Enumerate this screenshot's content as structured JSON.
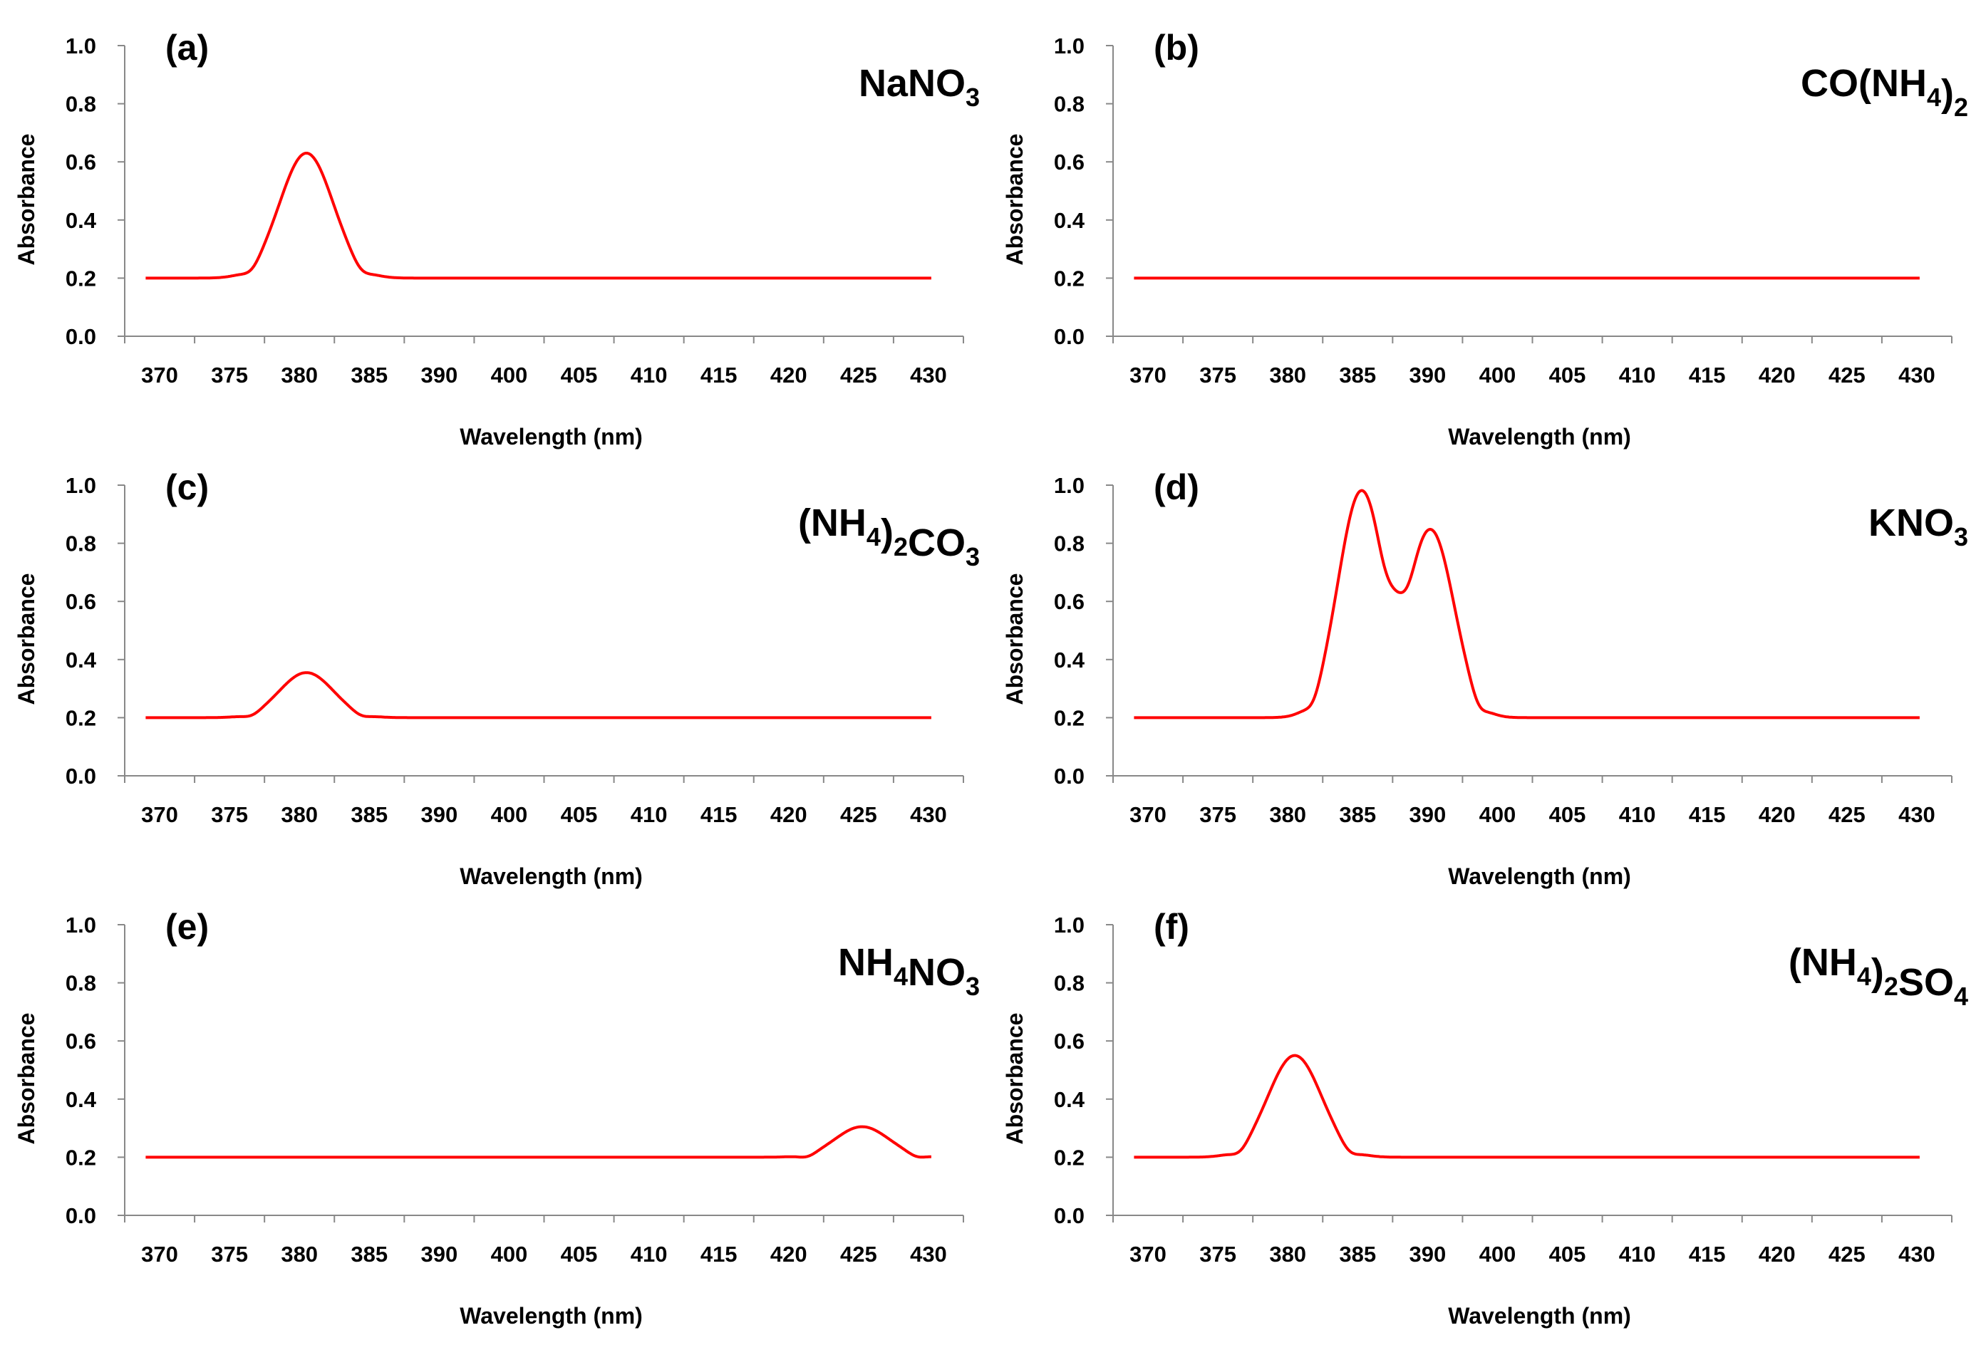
{
  "figure": {
    "background": "#ffffff",
    "curve_color": "#ff0000"
  },
  "chart_data": [
    {
      "type": "line",
      "panel": "(a)",
      "compound": [
        "NaNO",
        {
          "sub": "3"
        }
      ],
      "xlabel": "Wavelength (nm)",
      "ylabel": "Absorbance",
      "categories": [
        "370",
        "375",
        "380",
        "385",
        "390",
        "400",
        "405",
        "410",
        "415",
        "420",
        "425",
        "430"
      ],
      "yticks": [
        "0.0",
        "0.2",
        "0.4",
        "0.6",
        "0.8",
        "1.0"
      ],
      "ylim": [
        0,
        1.0
      ],
      "baseline": 0.2,
      "peaks": [
        {
          "center_category_index": 2.1,
          "value": 0.63,
          "width": 0.38,
          "dip": 0.18
        }
      ]
    },
    {
      "type": "line",
      "panel": "(b)",
      "compound": [
        "CO(NH",
        {
          "sub": "4"
        },
        ")",
        {
          "sub": "2"
        }
      ],
      "xlabel": "Wavelength (nm)",
      "ylabel": "Absorbance",
      "categories": [
        "370",
        "375",
        "380",
        "385",
        "390",
        "400",
        "405",
        "410",
        "415",
        "420",
        "425",
        "430"
      ],
      "yticks": [
        "0.0",
        "0.2",
        "0.4",
        "0.6",
        "0.8",
        "1.0"
      ],
      "ylim": [
        0,
        1.0
      ],
      "baseline": 0.2,
      "peaks": []
    },
    {
      "type": "line",
      "panel": "(c)",
      "compound": [
        "(NH",
        {
          "sub": "4"
        },
        ")",
        {
          "sub": "2"
        },
        "CO",
        {
          "sub": "3"
        }
      ],
      "xlabel": "Wavelength (nm)",
      "ylabel": "Absorbance",
      "categories": [
        "370",
        "375",
        "380",
        "385",
        "390",
        "400",
        "405",
        "410",
        "415",
        "420",
        "425",
        "430"
      ],
      "yticks": [
        "0.0",
        "0.2",
        "0.4",
        "0.6",
        "0.8",
        "1.0"
      ],
      "ylim": [
        0,
        1.0
      ],
      "baseline": 0.2,
      "peaks": [
        {
          "center_category_index": 2.1,
          "value": 0.355,
          "width": 0.38,
          "dip": 0.19
        }
      ]
    },
    {
      "type": "line",
      "panel": "(d)",
      "compound": [
        "KNO",
        {
          "sub": "3"
        }
      ],
      "xlabel": "Wavelength (nm)",
      "ylabel": "Absorbance",
      "categories": [
        "370",
        "375",
        "380",
        "385",
        "390",
        "400",
        "405",
        "410",
        "415",
        "420",
        "425",
        "430"
      ],
      "yticks": [
        "0.0",
        "0.2",
        "0.4",
        "0.6",
        "0.8",
        "1.0"
      ],
      "ylim": [
        0,
        1.0
      ],
      "baseline": 0.2,
      "peaks": [
        {
          "center_category_index": 3.05,
          "value": 0.975,
          "width": 0.33,
          "dip": 0.17
        },
        {
          "center_category_index": 4.05,
          "value": 0.84,
          "width": 0.33,
          "dip": 0.17
        }
      ]
    },
    {
      "type": "line",
      "panel": "(e)",
      "compound": [
        "NH",
        {
          "sub": "4"
        },
        "NO",
        {
          "sub": "3"
        }
      ],
      "xlabel": "Wavelength (nm)",
      "ylabel": "Absorbance",
      "categories": [
        "370",
        "375",
        "380",
        "385",
        "390",
        "400",
        "405",
        "410",
        "415",
        "420",
        "425",
        "430"
      ],
      "yticks": [
        "0.0",
        "0.2",
        "0.4",
        "0.6",
        "0.8",
        "1.0"
      ],
      "ylim": [
        0,
        1.0
      ],
      "baseline": 0.2,
      "peaks": [
        {
          "center_category_index": 10.05,
          "value": 0.305,
          "width": 0.38,
          "dip": 0.19
        }
      ]
    },
    {
      "type": "line",
      "panel": "(f)",
      "compound": [
        "(NH",
        {
          "sub": "4"
        },
        ")",
        {
          "sub": "2"
        },
        "SO",
        {
          "sub": "4"
        }
      ],
      "xlabel": "Wavelength (nm)",
      "ylabel": "Absorbance",
      "categories": [
        "370",
        "375",
        "380",
        "385",
        "390",
        "400",
        "405",
        "410",
        "415",
        "420",
        "425",
        "430"
      ],
      "yticks": [
        "0.0",
        "0.2",
        "0.4",
        "0.6",
        "0.8",
        "1.0"
      ],
      "ylim": [
        0,
        1.0
      ],
      "baseline": 0.2,
      "peaks": [
        {
          "center_category_index": 2.1,
          "value": 0.55,
          "width": 0.38,
          "dip": 0.18
        }
      ]
    }
  ]
}
